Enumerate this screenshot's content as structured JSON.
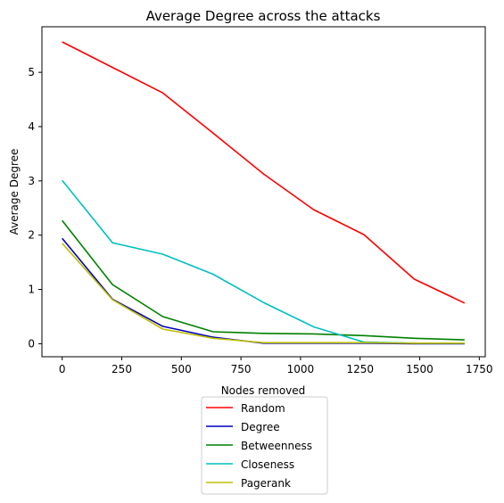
{
  "chart_data": {
    "type": "line",
    "title": "Average Degree across the attacks",
    "xlabel": "Nodes removed",
    "ylabel": "Average Degree",
    "xlim": [
      -85,
      1775
    ],
    "ylim": [
      -0.24,
      5.84
    ],
    "xticks": [
      0,
      250,
      500,
      750,
      1000,
      1250,
      1500,
      1750
    ],
    "yticks": [
      0,
      1,
      2,
      3,
      4,
      5
    ],
    "x": [
      0,
      211,
      422,
      633,
      844,
      1055,
      1266,
      1477,
      1688
    ],
    "series": [
      {
        "name": "Random",
        "color": "#ff0000",
        "values": [
          5.56,
          5.09,
          4.62,
          3.88,
          3.13,
          2.47,
          2.01,
          1.19,
          0.75
        ]
      },
      {
        "name": "Degree",
        "color": "#0000bf",
        "values": [
          1.94,
          0.82,
          0.32,
          0.12,
          0.01,
          0.01,
          0.01,
          0.0,
          0.0
        ]
      },
      {
        "name": "Betweenness",
        "color": "#008000",
        "values": [
          2.27,
          1.09,
          0.5,
          0.22,
          0.19,
          0.18,
          0.15,
          0.1,
          0.07
        ]
      },
      {
        "name": "Closeness",
        "color": "#00bfbf",
        "values": [
          3.01,
          1.86,
          1.65,
          1.28,
          0.76,
          0.31,
          0.03,
          0.01,
          0.01
        ]
      },
      {
        "name": "Pagerank",
        "color": "#bfbf00",
        "values": [
          1.85,
          0.81,
          0.27,
          0.1,
          0.02,
          0.02,
          0.02,
          0.01,
          0.01
        ]
      }
    ]
  }
}
